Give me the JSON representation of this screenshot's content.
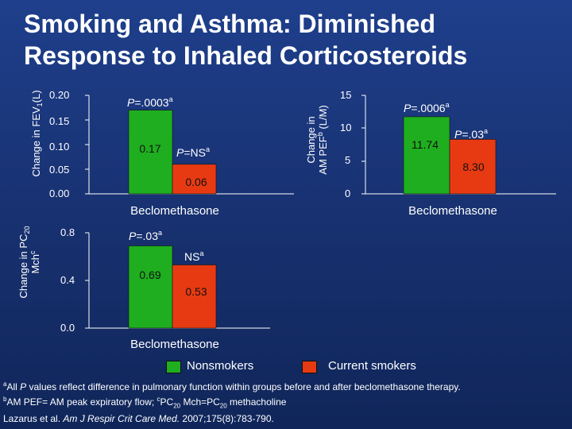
{
  "title_line1": "Smoking and Asthma: Diminished",
  "title_line2": "Response to Inhaled Corticosteroids",
  "colors": {
    "nonsmokers": "#1fae1f",
    "smokers": "#e83a12"
  },
  "chart_data": [
    {
      "type": "bar",
      "ylabel_main": "Change in FEV",
      "ylabel_sub": "1",
      "ylabel_unit": "(L)",
      "ylim": [
        0,
        0.2
      ],
      "yticks": [
        "0.20",
        "0.15",
        "0.10",
        "0.05",
        "0.00"
      ],
      "xlabel": "Beclomethasone",
      "series": [
        {
          "name": "Nonsmokers",
          "value": 0.17,
          "value_label": "0.17",
          "p_prefix": "P",
          "p_text": "=.0003",
          "p_sup": "a"
        },
        {
          "name": "Current smokers",
          "value": 0.06,
          "value_label": "0.06",
          "p_prefix": "P",
          "p_text": "=NS",
          "p_sup": "a"
        }
      ]
    },
    {
      "type": "bar",
      "ylabel_line1": "Change in",
      "ylabel_line2": "AM PEF",
      "ylabel_sup": "b",
      "ylabel_unit": " (L/M)",
      "ylim": [
        0,
        15
      ],
      "yticks": [
        "15",
        "10",
        "5",
        "0"
      ],
      "xlabel": "Beclomethasone",
      "series": [
        {
          "name": "Nonsmokers",
          "value": 11.74,
          "value_label": "11.74",
          "p_prefix": "P",
          "p_text": "=.0006",
          "p_sup": "a"
        },
        {
          "name": "Current smokers",
          "value": 8.3,
          "value_label": "8.30",
          "p_prefix": "P",
          "p_text": "=.03",
          "p_sup": "a"
        }
      ]
    },
    {
      "type": "bar",
      "ylabel_line1": "Change in PC",
      "ylabel_sub": "20",
      "ylabel_line2": "Mch",
      "ylabel_sup": "c",
      "ylim": [
        0,
        0.8
      ],
      "yticks": [
        "0.8",
        "0.4",
        "0.0"
      ],
      "xlabel": "Beclomethasone",
      "series": [
        {
          "name": "Nonsmokers",
          "value": 0.69,
          "value_label": "0.69",
          "p_prefix": "P",
          "p_text": "=.03",
          "p_sup": "a"
        },
        {
          "name": "Current smokers",
          "value": 0.53,
          "value_label": "0.53",
          "p_prefix": "",
          "p_text": "NS",
          "p_sup": "a"
        }
      ]
    }
  ],
  "legend": {
    "nonsmokers": "Nonsmokers",
    "smokers": "Current smokers"
  },
  "footnotes": {
    "a_mark": "a",
    "a_all": "All ",
    "a_p": "P",
    "a_rest": " values reflect difference in pulmonary function within groups before and after beclomethasone therapy.",
    "b_mark": "b",
    "b_text": "AM PEF= AM peak expiratory flow; ",
    "c_mark": "c",
    "c_pc": "PC",
    "c_sub1": "20",
    "c_mch": " Mch=PC",
    "c_sub2": "20",
    "c_rest": " methacholine",
    "ref_authors": "Lazarus et al. ",
    "ref_journal": "Am J Respir Crit Care Med.",
    "ref_rest": " 2007;175(8):783-790."
  }
}
